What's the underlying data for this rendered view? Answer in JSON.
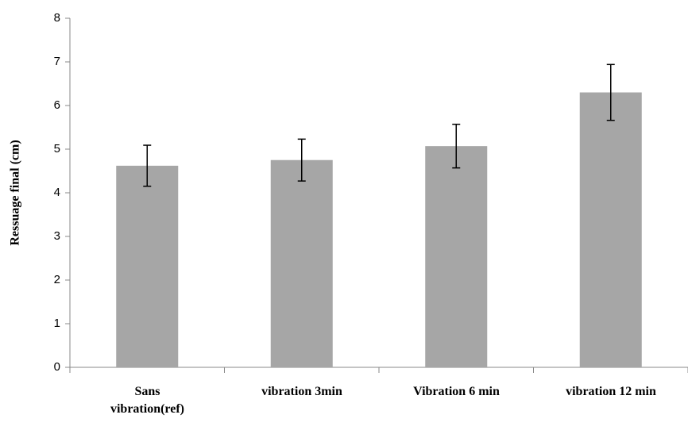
{
  "chart_data": {
    "type": "bar",
    "ylabel": "Ressuage final (cm)",
    "categories": [
      "Sans\nvibration(ref)",
      "vibration 3min",
      "Vibration 6 min",
      "vibration 12 min"
    ],
    "values": [
      4.62,
      4.75,
      5.07,
      6.3
    ],
    "errors": [
      0.47,
      0.48,
      0.5,
      0.64
    ],
    "color": "#a6a6a6",
    "ylim": [
      0,
      8
    ],
    "yticks": [
      0,
      1,
      2,
      3,
      4,
      5,
      6,
      7,
      8
    ],
    "grid": false
  }
}
